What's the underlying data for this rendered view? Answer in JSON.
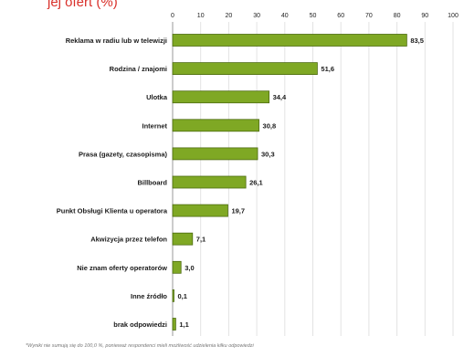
{
  "header": {
    "cropped_title": "jej ofert (%)"
  },
  "colors": {
    "bar": "#7fa824",
    "bar_edge": "#4d6b10",
    "grid": "#e3e3e3"
  },
  "chart_data": {
    "type": "bar",
    "orientation": "horizontal",
    "title": "",
    "xlabel": "",
    "ylabel": "",
    "xlim": [
      0,
      100
    ],
    "ticks": [
      "0",
      "10",
      "20",
      "30",
      "40",
      "50",
      "60",
      "70",
      "80",
      "90",
      "100"
    ],
    "grid": true,
    "categories": [
      "Reklama w radiu lub w telewizji",
      "Rodzina / znajomi",
      "Ulotka",
      "Internet",
      "Prasa (gazety, czasopisma)",
      "Billboard",
      "Punkt Obsługi Klienta u operatora",
      "Akwizycja przez telefon",
      "Nie znam oferty operatorów",
      "Inne źródło",
      "brak odpowiedzi"
    ],
    "values": [
      83.5,
      51.6,
      34.4,
      30.8,
      30.3,
      26.1,
      19.7,
      7.1,
      3.0,
      0.1,
      1.1
    ],
    "value_labels": [
      "83,5",
      "51,6",
      "34,4",
      "30,8",
      "30,3",
      "26,1",
      "19,7",
      "7,1",
      "3,0",
      "0,1",
      "1,1"
    ],
    "footnote": "*Wyniki nie sumują się do 100,0 %, ponieważ respondenci mieli możliwość udzielenia kilku odpowiedzi"
  }
}
